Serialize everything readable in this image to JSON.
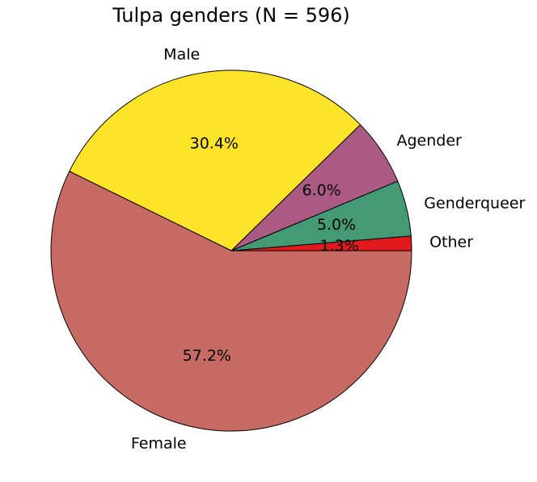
{
  "chart_data": {
    "type": "pie",
    "title": "Tulpa genders (N = 596)",
    "categories": [
      "Other",
      "Genderqueer",
      "Agender",
      "Male",
      "Female"
    ],
    "values": [
      1.3,
      5.0,
      6.0,
      30.4,
      57.2
    ],
    "value_labels": [
      "1.3%",
      "5.0%",
      "6.0%",
      "30.4%",
      "57.2%"
    ],
    "colors": [
      "#e31a1c",
      "#439a74",
      "#ab5a83",
      "#fde428",
      "#c76a63"
    ],
    "start_angle_deg": 0,
    "direction": "counterclockwise",
    "edge_color": "#000000"
  }
}
